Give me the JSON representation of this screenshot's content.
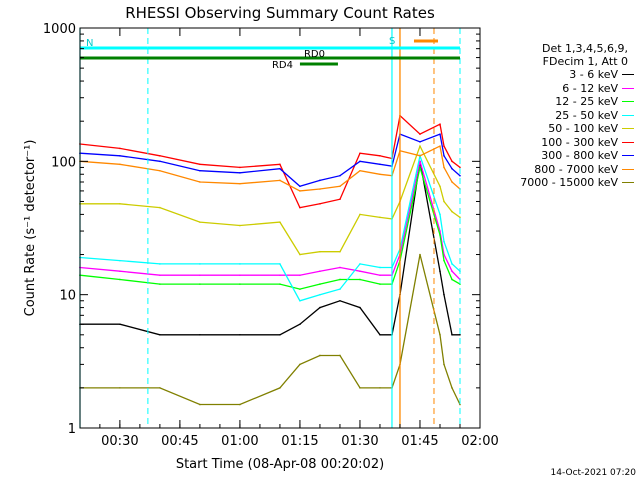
{
  "chart_data": {
    "type": "line",
    "title": "RHESSI Observing Summary Count Rates",
    "xlabel": "Start Time (08-Apr-08 00:20:02)",
    "ylabel": "Count Rate (s⁻¹ detector⁻¹)",
    "yscale": "log",
    "xlim": [
      "00:20:02",
      "02:00"
    ],
    "ylim": [
      1,
      1000
    ],
    "x_ticks": [
      "00:30",
      "00:45",
      "01:00",
      "01:15",
      "01:30",
      "01:45",
      "02:00"
    ],
    "y_ticks": [
      "1",
      "10",
      "100",
      "1000"
    ],
    "legend_header": [
      "Det 1,3,4,5,6,9,",
      "FDecim 1, Att 0"
    ],
    "legend_position": "right",
    "series": [
      {
        "name": "3 - 6 keV",
        "color": "#000000",
        "x": [
          "00:20",
          "00:30",
          "00:40",
          "00:50",
          "01:00",
          "01:10",
          "01:15",
          "01:20",
          "01:25",
          "01:30",
          "01:35",
          "01:38",
          "01:40",
          "01:45",
          "01:50",
          "01:51",
          "01:53",
          "01:55"
        ],
        "y": [
          6,
          6,
          5,
          5,
          5,
          5,
          6,
          8,
          9,
          8,
          5,
          5,
          10,
          100,
          15,
          10,
          5,
          5
        ]
      },
      {
        "name": "6 - 12 keV",
        "color": "#ff00ff",
        "x": [
          "00:20",
          "00:30",
          "00:40",
          "00:50",
          "01:00",
          "01:10",
          "01:15",
          "01:20",
          "01:25",
          "01:30",
          "01:35",
          "01:38",
          "01:40",
          "01:45",
          "01:50",
          "01:51",
          "01:53",
          "01:55"
        ],
        "y": [
          16,
          15,
          14,
          14,
          14,
          14,
          14,
          15,
          16,
          15,
          14,
          14,
          20,
          100,
          30,
          20,
          15,
          13
        ]
      },
      {
        "name": "12 - 25 keV",
        "color": "#00ff00",
        "x": [
          "00:20",
          "00:30",
          "00:40",
          "00:50",
          "01:00",
          "01:10",
          "01:15",
          "01:20",
          "01:25",
          "01:30",
          "01:35",
          "01:38",
          "01:40",
          "01:45",
          "01:50",
          "01:51",
          "01:53",
          "01:55"
        ],
        "y": [
          14,
          13,
          12,
          12,
          12,
          12,
          11,
          12,
          13,
          13,
          12,
          12,
          18,
          90,
          28,
          18,
          13,
          12
        ]
      },
      {
        "name": "25 - 50 keV",
        "color": "#00ffff",
        "x": [
          "00:20",
          "00:30",
          "00:40",
          "00:50",
          "01:00",
          "01:10",
          "01:15",
          "01:20",
          "01:25",
          "01:30",
          "01:35",
          "01:38",
          "01:40",
          "01:45",
          "01:50",
          "01:51",
          "01:53",
          "01:55"
        ],
        "y": [
          19,
          18,
          17,
          17,
          17,
          17,
          9,
          10,
          11,
          17,
          16,
          16,
          22,
          110,
          40,
          25,
          17,
          15
        ]
      },
      {
        "name": "50 - 100 keV",
        "color": "#cccc00",
        "x": [
          "00:20",
          "00:30",
          "00:40",
          "00:50",
          "01:00",
          "01:10",
          "01:15",
          "01:20",
          "01:25",
          "01:30",
          "01:35",
          "01:38",
          "01:40",
          "01:45",
          "01:50",
          "01:51",
          "01:53",
          "01:55"
        ],
        "y": [
          48,
          48,
          45,
          35,
          33,
          35,
          20,
          21,
          21,
          40,
          38,
          37,
          50,
          130,
          65,
          50,
          42,
          38
        ]
      },
      {
        "name": "100 - 300 keV",
        "color": "#ff0000",
        "x": [
          "00:20",
          "00:30",
          "00:40",
          "00:50",
          "01:00",
          "01:10",
          "01:15",
          "01:20",
          "01:25",
          "01:30",
          "01:35",
          "01:38",
          "01:40",
          "01:45",
          "01:50",
          "01:51",
          "01:53",
          "01:55"
        ],
        "y": [
          135,
          125,
          110,
          95,
          90,
          95,
          45,
          48,
          52,
          115,
          110,
          105,
          220,
          160,
          190,
          130,
          100,
          90
        ]
      },
      {
        "name": "300 - 800 keV",
        "color": "#0000ff",
        "x": [
          "00:20",
          "00:30",
          "00:40",
          "00:50",
          "01:00",
          "01:10",
          "01:15",
          "01:20",
          "01:25",
          "01:30",
          "01:35",
          "01:38",
          "01:40",
          "01:45",
          "01:50",
          "01:51",
          "01:53",
          "01:55"
        ],
        "y": [
          115,
          110,
          100,
          85,
          82,
          88,
          65,
          72,
          78,
          100,
          95,
          92,
          160,
          140,
          160,
          110,
          88,
          78
        ]
      },
      {
        "name": "800 - 7000 keV",
        "color": "#ff8800",
        "x": [
          "00:20",
          "00:30",
          "00:40",
          "00:50",
          "01:00",
          "01:10",
          "01:15",
          "01:20",
          "01:25",
          "01:30",
          "01:35",
          "01:38",
          "01:40",
          "01:45",
          "01:50",
          "01:51",
          "01:53",
          "01:55"
        ],
        "y": [
          100,
          95,
          85,
          70,
          68,
          72,
          60,
          62,
          65,
          85,
          80,
          78,
          120,
          110,
          130,
          90,
          70,
          62
        ]
      },
      {
        "name": "7000 - 15000 keV",
        "color": "#808000",
        "x": [
          "00:20",
          "00:30",
          "00:40",
          "00:50",
          "01:00",
          "01:10",
          "01:15",
          "01:20",
          "01:25",
          "01:30",
          "01:35",
          "01:38",
          "01:40",
          "01:45",
          "01:50",
          "01:51",
          "01:53",
          "01:55"
        ],
        "y": [
          2,
          2,
          2,
          1.5,
          1.5,
          2,
          3,
          3.5,
          3.5,
          2,
          2,
          2,
          3,
          20,
          5,
          3,
          2,
          1.5
        ]
      }
    ],
    "annotations": {
      "flags": [
        {
          "label": "N",
          "color": "#00ffff",
          "start": "00:20:02",
          "end": "00:37:00"
        },
        {
          "label": "",
          "color": "#00ffff",
          "start": "00:37:00",
          "end": "01:38:00"
        },
        {
          "label": "S",
          "color": "#00ffff",
          "start": "01:38:00",
          "end": "01:55:00"
        },
        {
          "label": "RD0",
          "color": "#008000",
          "start": "00:20:02",
          "end": "01:55:00"
        },
        {
          "label": "RD4",
          "color": "#008000",
          "start": "01:15:00",
          "end": "01:24:30"
        },
        {
          "label": "",
          "color": "#ff8800",
          "start": "01:43:30",
          "end": "01:49:30"
        }
      ],
      "vlines_dashed_cyan": [
        "00:37:00",
        "01:55:00"
      ],
      "vlines_solid_cyan": [
        "00:20:02",
        "01:38:00"
      ],
      "vlines_solid_orange": [
        "01:40:00"
      ],
      "vlines_dashed_orange": [
        "01:48:30"
      ]
    },
    "footer_date": "14-Oct-2021 07:20"
  }
}
